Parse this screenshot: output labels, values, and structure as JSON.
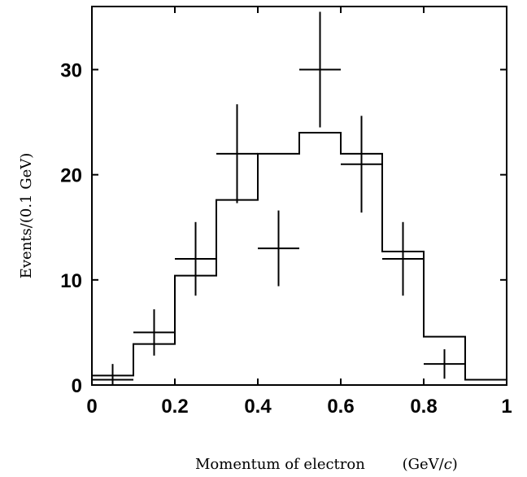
{
  "chart_data": {
    "type": "histogram",
    "xlabel": "Momentum of electron",
    "xunit_prefix": "(GeV/",
    "xunit_italic": "c",
    "xunit_suffix": ")",
    "ylabel": "Events/(0.1 GeV)",
    "xlim": [
      0,
      1
    ],
    "ylim": [
      0,
      36
    ],
    "x_ticks": [
      0,
      0.2,
      0.4,
      0.6,
      0.8,
      1
    ],
    "x_tick_labels": [
      "0",
      "0.2",
      "0.4",
      "0.6",
      "0.8",
      "1"
    ],
    "y_ticks": [
      0,
      10,
      20,
      30
    ],
    "y_tick_labels": [
      "0",
      "10",
      "20",
      "30"
    ],
    "grid": false,
    "histogram": {
      "bin_edges": [
        0,
        0.1,
        0.2,
        0.3,
        0.4,
        0.5,
        0.6,
        0.7,
        0.8,
        0.9,
        1.0
      ],
      "values": [
        0.9,
        3.9,
        10.4,
        17.6,
        22.0,
        24.0,
        22.0,
        12.7,
        4.6,
        0.5
      ]
    },
    "data_points": [
      {
        "x": 0.05,
        "y": 0.5,
        "yerr": 1.5
      },
      {
        "x": 0.15,
        "y": 5.0,
        "yerr": 2.2
      },
      {
        "x": 0.25,
        "y": 12.0,
        "yerr": 3.5
      },
      {
        "x": 0.35,
        "y": 22.0,
        "yerr": 4.7
      },
      {
        "x": 0.45,
        "y": 13.0,
        "yerr": 3.6
      },
      {
        "x": 0.55,
        "y": 30.0,
        "yerr": 5.5
      },
      {
        "x": 0.65,
        "y": 21.0,
        "yerr": 4.6
      },
      {
        "x": 0.75,
        "y": 12.0,
        "yerr": 3.5
      },
      {
        "x": 0.85,
        "y": 2.0,
        "yerr": 1.4
      }
    ]
  }
}
